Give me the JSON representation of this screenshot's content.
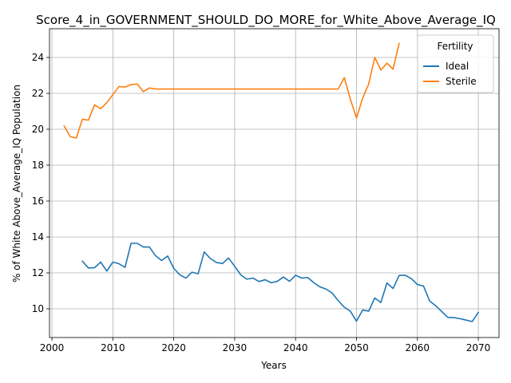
{
  "chart_data": {
    "type": "line",
    "title": "Score_4_in_GOVERNMENT_SHOULD_DO_MORE_for_White_Above_Average_IQ",
    "xlabel": "Years",
    "ylabel": "% of White Above_Average_IQ Population",
    "xlim": [
      1999.6,
      2073.4
    ],
    "ylim": [
      8.4,
      25.6
    ],
    "xticks": [
      2000,
      2010,
      2020,
      2030,
      2040,
      2050,
      2060,
      2070
    ],
    "yticks": [
      10,
      12,
      14,
      16,
      18,
      20,
      22,
      24
    ],
    "grid": true,
    "legend": {
      "title": "Fertility",
      "placement": "top-right"
    },
    "series": [
      {
        "name": "Ideal",
        "color": "#1f77b4",
        "x": [
          2005,
          2006,
          2007,
          2008,
          2009,
          2010,
          2011,
          2012,
          2013,
          2014,
          2015,
          2016,
          2017,
          2018,
          2019,
          2020,
          2021,
          2022,
          2023,
          2024,
          2025,
          2026,
          2027,
          2028,
          2029,
          2030,
          2031,
          2032,
          2033,
          2034,
          2035,
          2036,
          2037,
          2038,
          2039,
          2040,
          2041,
          2042,
          2043,
          2044,
          2045,
          2046,
          2047,
          2048,
          2049,
          2050,
          2051,
          2052,
          2053,
          2054,
          2055,
          2056,
          2057,
          2058,
          2059,
          2060,
          2061,
          2062,
          2063,
          2064,
          2065,
          2066,
          2067,
          2068,
          2069,
          2070
        ],
        "y": [
          12.65,
          12.27,
          12.29,
          12.6,
          12.1,
          12.6,
          12.51,
          12.31,
          13.65,
          13.65,
          13.44,
          13.44,
          12.96,
          12.69,
          12.94,
          12.25,
          11.89,
          11.71,
          12.04,
          11.95,
          13.17,
          12.8,
          12.58,
          12.52,
          12.83,
          12.37,
          11.89,
          11.65,
          11.71,
          11.52,
          11.62,
          11.45,
          11.53,
          11.77,
          11.53,
          11.87,
          11.71,
          11.74,
          11.45,
          11.22,
          11.1,
          10.88,
          10.45,
          10.09,
          9.86,
          9.31,
          9.93,
          9.87,
          10.6,
          10.35,
          11.44,
          11.13,
          11.86,
          11.87,
          11.68,
          11.35,
          11.27,
          10.44,
          10.17,
          9.85,
          9.52,
          9.51,
          9.45,
          9.37,
          9.29,
          9.8
        ]
      },
      {
        "name": "Sterile",
        "color": "#ff7f0e",
        "x": [
          2002,
          2003,
          2004,
          2005,
          2006,
          2007,
          2008,
          2009,
          2010,
          2011,
          2012,
          2013,
          2014,
          2015,
          2016,
          2017,
          2018,
          2019,
          2020,
          2021,
          2022,
          2023,
          2024,
          2025,
          2026,
          2027,
          2028,
          2029,
          2030,
          2031,
          2032,
          2033,
          2034,
          2035,
          2036,
          2037,
          2038,
          2039,
          2040,
          2041,
          2042,
          2043,
          2044,
          2045,
          2046,
          2047,
          2048,
          2049,
          2050,
          2051,
          2052,
          2053,
          2054,
          2055,
          2056,
          2057
        ],
        "y": [
          20.19,
          19.59,
          19.51,
          20.56,
          20.51,
          21.36,
          21.14,
          21.48,
          21.93,
          22.38,
          22.35,
          22.49,
          22.52,
          22.1,
          22.3,
          22.24,
          22.24,
          22.24,
          22.24,
          22.24,
          22.24,
          22.24,
          22.24,
          22.24,
          22.24,
          22.24,
          22.24,
          22.24,
          22.24,
          22.24,
          22.24,
          22.24,
          22.24,
          22.24,
          22.24,
          22.24,
          22.24,
          22.24,
          22.24,
          22.24,
          22.24,
          22.24,
          22.24,
          22.24,
          22.24,
          22.24,
          22.88,
          21.66,
          20.63,
          21.73,
          22.52,
          24.0,
          23.3,
          23.68,
          23.35,
          24.78
        ]
      }
    ]
  }
}
